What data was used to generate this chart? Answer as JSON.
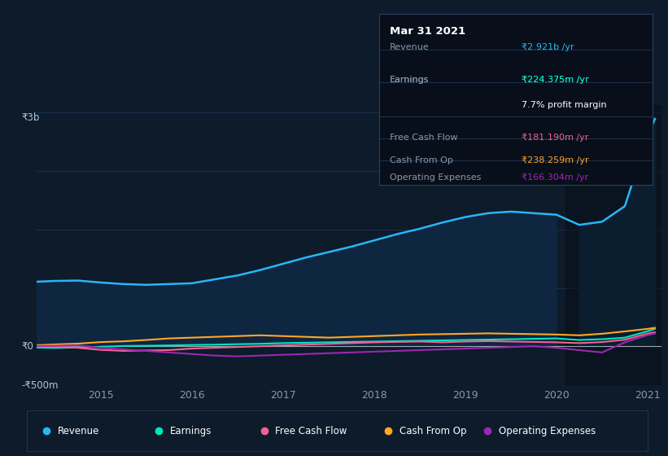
{
  "background_color": "#0d1b2a",
  "plot_bg_color": "#0d1b2a",
  "title": "Mar 31 2021",
  "x_years": [
    2014.3,
    2014.5,
    2014.75,
    2015.0,
    2015.25,
    2015.5,
    2015.75,
    2016.0,
    2016.25,
    2016.5,
    2016.75,
    2017.0,
    2017.25,
    2017.5,
    2017.75,
    2018.0,
    2018.25,
    2018.5,
    2018.75,
    2019.0,
    2019.25,
    2019.5,
    2019.75,
    2020.0,
    2020.25,
    2020.5,
    2020.75,
    2021.0,
    2021.08
  ],
  "revenue": [
    830,
    840,
    845,
    820,
    800,
    790,
    800,
    810,
    860,
    910,
    980,
    1060,
    1140,
    1210,
    1280,
    1360,
    1440,
    1510,
    1590,
    1660,
    1710,
    1730,
    1710,
    1690,
    1560,
    1600,
    1800,
    2700,
    2921
  ],
  "earnings": [
    -15,
    -20,
    -15,
    -5,
    5,
    8,
    12,
    18,
    22,
    28,
    33,
    42,
    47,
    52,
    57,
    62,
    67,
    72,
    77,
    82,
    87,
    92,
    97,
    102,
    82,
    92,
    112,
    195,
    224
  ],
  "free_cash_flow": [
    5,
    -8,
    -18,
    -45,
    -58,
    -52,
    -48,
    -28,
    -18,
    -8,
    2,
    12,
    22,
    32,
    42,
    52,
    57,
    62,
    52,
    62,
    67,
    62,
    57,
    52,
    42,
    55,
    85,
    165,
    181
  ],
  "cash_from_op": [
    15,
    25,
    35,
    55,
    65,
    82,
    102,
    112,
    122,
    132,
    142,
    132,
    122,
    112,
    122,
    132,
    142,
    152,
    157,
    162,
    167,
    162,
    157,
    152,
    142,
    162,
    192,
    225,
    238
  ],
  "operating_expenses": [
    5,
    8,
    12,
    -18,
    -38,
    -58,
    -78,
    -98,
    -118,
    -128,
    -118,
    -108,
    -98,
    -88,
    -78,
    -68,
    -58,
    -48,
    -38,
    -28,
    -18,
    -8,
    2,
    -18,
    -48,
    -78,
    52,
    145,
    166
  ],
  "ylim": [
    -500,
    3100
  ],
  "xlim_start": 2014.3,
  "xlim_end": 2021.15,
  "shade_start": 2020.1,
  "xticks": [
    2015,
    2016,
    2017,
    2018,
    2019,
    2020,
    2021
  ],
  "revenue_color": "#29b6f6",
  "earnings_color": "#00e5c0",
  "free_cash_flow_color": "#f06292",
  "cash_from_op_color": "#ffa726",
  "operating_expenses_color": "#9c27b0",
  "fill_color": "#0e2640",
  "shade_color": "#0a1e30",
  "grid_color": "#1e3a5f",
  "text_color": "#8899aa",
  "text_color_bright": "#b0c8dd",
  "tooltip_bg": "#080f1a",
  "tooltip_border": "#2a4060",
  "legend_items": [
    "Revenue",
    "Earnings",
    "Free Cash Flow",
    "Cash From Op",
    "Operating Expenses"
  ],
  "legend_colors": [
    "#29b6f6",
    "#00e5c0",
    "#f06292",
    "#ffa726",
    "#9c27b0"
  ],
  "ytick_labels": [
    "-₹500m",
    "₹0",
    "₹3b"
  ],
  "tooltip_rows": [
    {
      "label": "Revenue",
      "value": "₹2.921b /yr",
      "value_color": "#29b6f6"
    },
    {
      "label": "Earnings",
      "value": "₹224.375m /yr",
      "value_color": "#00e5c0"
    },
    {
      "label": "",
      "value": "7.7% profit margin",
      "value_color": "#ffffff"
    },
    {
      "label": "Free Cash Flow",
      "value": "₹181.190m /yr",
      "value_color": "#f06292"
    },
    {
      "label": "Cash From Op",
      "value": "₹238.259m /yr",
      "value_color": "#ffa726"
    },
    {
      "label": "Operating Expenses",
      "value": "₹166.304m /yr",
      "value_color": "#9c27b0"
    }
  ]
}
